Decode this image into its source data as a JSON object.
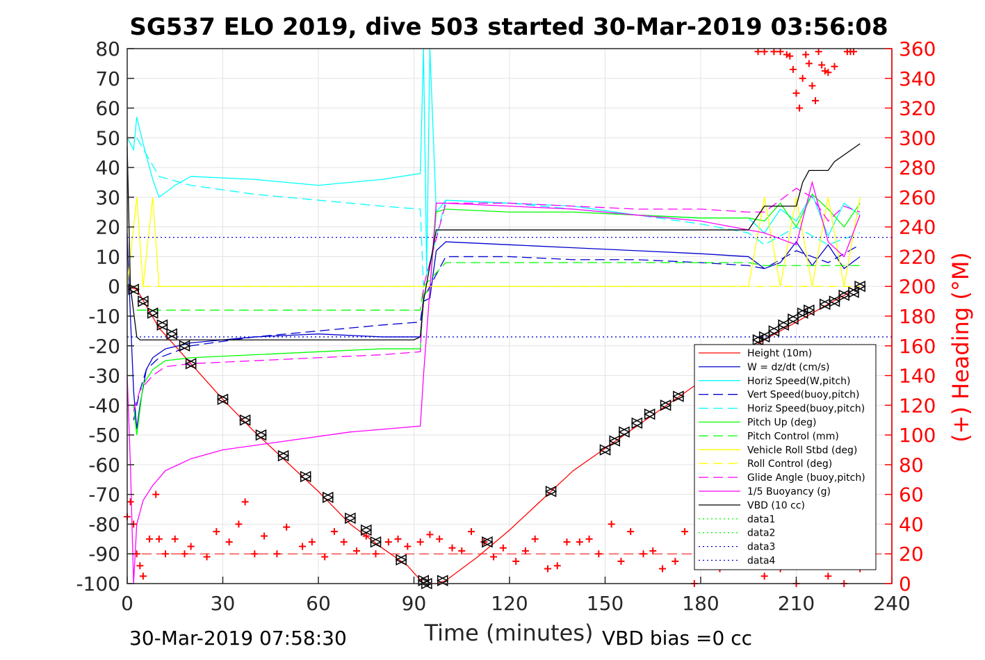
{
  "chart_data": {
    "type": "line",
    "title": "SG537 ELO 2019, dive 503 started 30-Mar-2019 03:56:08",
    "xlabel": "Time (minutes)",
    "ylabel_right": "(+) Heading (°M)",
    "footer_left": "30-Mar-2019 07:58:30",
    "footer_right": "VBD bias =0 cc",
    "xlim": [
      0,
      240
    ],
    "ylim": [
      -100,
      80
    ],
    "ylim_right": [
      0,
      360
    ],
    "x_ticks": [
      "0",
      "30",
      "60",
      "90",
      "120",
      "150",
      "180",
      "210",
      "240"
    ],
    "y_ticks": [
      "80",
      "70",
      "60",
      "50",
      "40",
      "30",
      "20",
      "10",
      "0",
      "-10",
      "-20",
      "-30",
      "-40",
      "-50",
      "-60",
      "-70",
      "-80",
      "-90",
      "-100"
    ],
    "y_ticks_right": [
      "360",
      "340",
      "320",
      "300",
      "280",
      "260",
      "240",
      "220",
      "200",
      "180",
      "160",
      "140",
      "120",
      "100",
      "80",
      "60",
      "40",
      "20",
      "0"
    ],
    "grid": true,
    "legend_position": "bottom-right",
    "series": [
      {
        "name": "Height (10m)",
        "color": "#ff0000",
        "style": "solid",
        "x": [
          0,
          3,
          10,
          20,
          30,
          40,
          50,
          60,
          70,
          80,
          88,
          93,
          97,
          100,
          110,
          120,
          140,
          160,
          180,
          200,
          215,
          230
        ],
        "y": [
          0,
          -1,
          -14,
          -26,
          -38,
          -49,
          -59,
          -69,
          -80,
          -88,
          -94,
          -100,
          -100,
          -99,
          -91,
          -82,
          -62,
          -47,
          -32,
          -18,
          -9,
          0
        ]
      },
      {
        "name": "W = dz/dt (cm/s)",
        "color": "#0000cd",
        "style": "solid",
        "x": [
          0,
          1,
          2,
          3,
          4,
          6,
          8,
          12,
          20,
          40,
          60,
          80,
          92,
          93,
          95,
          97,
          100,
          120,
          140,
          160,
          180,
          195,
          200,
          205,
          210,
          215,
          220,
          225,
          230
        ],
        "y": [
          18,
          -10,
          -35,
          -48,
          -40,
          -28,
          -24,
          -21,
          -19,
          -17,
          -16,
          -17,
          -17,
          -5,
          -4,
          12,
          15,
          14,
          13,
          12,
          11,
          10,
          6,
          8,
          15,
          7,
          14,
          6,
          10
        ]
      },
      {
        "name": "Horiz Speed(W,pitch)",
        "color": "#00ffff",
        "style": "solid",
        "x": [
          0,
          2,
          3,
          5,
          8,
          10,
          15,
          20,
          40,
          60,
          80,
          92,
          93,
          94,
          95,
          97,
          100,
          120,
          140,
          160,
          180,
          195,
          200,
          205,
          210,
          215,
          220,
          225,
          230
        ],
        "y": [
          50,
          46,
          57,
          48,
          36,
          30,
          34,
          37,
          36,
          34,
          36,
          38,
          80,
          5,
          80,
          25,
          29,
          28,
          27,
          24,
          23,
          23,
          18,
          26,
          22,
          31,
          17,
          28,
          24
        ]
      },
      {
        "name": "Vert Speed(buoy,pitch)",
        "color": "#0000cd",
        "style": "dash",
        "x": [
          2,
          4,
          6,
          10,
          20,
          40,
          60,
          80,
          92,
          93,
          100,
          120,
          140,
          160,
          180,
          195,
          200,
          210,
          220,
          230
        ],
        "y": [
          -45,
          -35,
          -28,
          -24,
          -20,
          -17,
          -15,
          -13,
          -12,
          -4,
          10,
          10,
          9,
          9,
          8,
          7,
          6,
          12,
          8,
          14
        ]
      },
      {
        "name": "Horiz Speed(buoy,pitch)",
        "color": "#00ffff",
        "style": "dash",
        "x": [
          3,
          10,
          20,
          40,
          60,
          80,
          92,
          93,
          100,
          120,
          140,
          160,
          180,
          195,
          200,
          210,
          220,
          230
        ],
        "y": [
          50,
          37,
          34,
          31,
          29,
          27,
          26,
          0,
          29,
          28,
          26,
          24,
          21,
          18,
          14,
          20,
          14,
          18
        ]
      },
      {
        "name": "Pitch Up (deg)",
        "color": "#00ff00",
        "style": "solid",
        "x": [
          2,
          3,
          5,
          8,
          12,
          20,
          40,
          60,
          80,
          92,
          93,
          95,
          97,
          100,
          120,
          140,
          160,
          180,
          195,
          200,
          205,
          210,
          215,
          220,
          225,
          230
        ],
        "y": [
          -40,
          -50,
          -33,
          -28,
          -25,
          -24,
          -23,
          -22,
          -21,
          -21,
          -3,
          -1,
          25,
          26,
          25,
          25,
          24,
          23,
          23,
          22,
          28,
          20,
          31,
          26,
          20,
          28
        ]
      },
      {
        "name": "Pitch Control (mm)",
        "color": "#00ff00",
        "style": "dash",
        "x": [
          3,
          92,
          93,
          100,
          195,
          200,
          230
        ],
        "y": [
          -8,
          -8,
          0,
          8,
          8,
          7,
          7
        ]
      },
      {
        "name": "Vehicle Roll Stbd (deg)",
        "color": "#ffff00",
        "style": "solid",
        "x": [
          0,
          3,
          5,
          8,
          10,
          20,
          30,
          40,
          50,
          60,
          70,
          80,
          92,
          93,
          100,
          120,
          140,
          160,
          180,
          195,
          200,
          205,
          210,
          215,
          220,
          225,
          230
        ],
        "y": [
          0,
          30,
          0,
          30,
          0,
          0,
          0,
          0,
          0,
          0,
          0,
          0,
          0,
          0,
          0,
          0,
          0,
          0,
          0,
          0,
          30,
          0,
          30,
          0,
          30,
          0,
          30
        ]
      },
      {
        "name": "Roll Control (deg)",
        "color": "#ffff00",
        "style": "dash",
        "x": [
          0,
          92,
          93,
          230
        ],
        "y": [
          0,
          0,
          0,
          0
        ]
      },
      {
        "name": "Glide Angle (buoy,pitch)",
        "color": "#ff00ff",
        "style": "dash",
        "x": [
          2,
          4,
          8,
          12,
          20,
          40,
          60,
          80,
          92,
          93,
          100,
          120,
          140,
          160,
          180,
          195,
          200,
          210,
          215,
          220,
          225,
          230
        ],
        "y": [
          -42,
          -35,
          -30,
          -27,
          -26,
          -25,
          -24,
          -23,
          -22,
          0,
          28,
          28,
          27,
          26,
          26,
          25,
          25,
          33,
          30,
          22,
          27,
          25
        ]
      },
      {
        "name": "1/5 Buoyancy (g)",
        "color": "#ff00ff",
        "style": "solid",
        "x": [
          0,
          1,
          2,
          3,
          5,
          8,
          12,
          20,
          30,
          50,
          70,
          92,
          93,
          97,
          100,
          120,
          140,
          160,
          180,
          200,
          210,
          215,
          220,
          225,
          230
        ],
        "y": [
          -30,
          -60,
          -100,
          -80,
          -72,
          -67,
          -62,
          -58,
          -55,
          -52,
          -49,
          -47,
          -30,
          28,
          28,
          27,
          26,
          24,
          22,
          18,
          14,
          35,
          15,
          10,
          24
        ]
      },
      {
        "name": "VBD (10 cc)",
        "color": "#000000",
        "style": "solid",
        "x": [
          0,
          1,
          3,
          4,
          90,
          92,
          93,
          97,
          100,
          195,
          200,
          210,
          212,
          214,
          220,
          222,
          226,
          230
        ],
        "y": [
          47,
          0,
          -17,
          -18,
          -18,
          -17,
          -5,
          19,
          19,
          19,
          27,
          27,
          35,
          39,
          39,
          42,
          45,
          48
        ]
      },
      {
        "name": "data1",
        "color": "#00ff00",
        "style": "dot",
        "x": [],
        "y": []
      },
      {
        "name": "data2",
        "color": "#00ff00",
        "style": "dot",
        "x": [],
        "y": []
      },
      {
        "name": "data3",
        "color": "#0000cd",
        "style": "dot",
        "x": [
          0,
          240
        ],
        "y": [
          16.5,
          16.5
        ]
      },
      {
        "name": "data4",
        "color": "#0000cd",
        "style": "dot",
        "x": [
          0,
          240
        ],
        "y": [
          -17,
          -17
        ]
      }
    ],
    "reference_lines": [
      {
        "color": "#ff0000",
        "style": "dash",
        "x": [
          0,
          240
        ],
        "y": [
          -90,
          -90
        ]
      }
    ],
    "heading_series": {
      "color": "#ff0000",
      "marker": "+",
      "axis": "right",
      "x": [
        0,
        1,
        2,
        3,
        4,
        5,
        7,
        9,
        10,
        12,
        15,
        18,
        20,
        25,
        28,
        32,
        35,
        37,
        40,
        43,
        47,
        50,
        55,
        58,
        62,
        65,
        68,
        72,
        75,
        78,
        82,
        85,
        88,
        92,
        95,
        98,
        102,
        105,
        108,
        112,
        115,
        118,
        122,
        125,
        128,
        132,
        135,
        138,
        142,
        145,
        148,
        152,
        155,
        158,
        162,
        165,
        168,
        172,
        175,
        178,
        182,
        186,
        190,
        195,
        200,
        205,
        210,
        215,
        220,
        225,
        230
      ],
      "y": [
        45,
        55,
        40,
        20,
        12,
        5,
        30,
        60,
        30,
        20,
        30,
        20,
        25,
        18,
        35,
        28,
        40,
        55,
        20,
        32,
        20,
        38,
        25,
        28,
        18,
        35,
        28,
        22,
        32,
        20,
        28,
        30,
        25,
        28,
        33,
        30,
        24,
        22,
        35,
        28,
        18,
        24,
        15,
        22,
        30,
        10,
        12,
        28,
        28,
        30,
        20,
        40,
        15,
        35,
        20,
        22,
        10,
        15,
        35,
        0,
        20,
        10,
        15,
        20,
        5,
        10,
        0,
        15,
        5,
        0,
        10
      ]
    },
    "heading_top_cluster": {
      "color": "#ff0000",
      "marker": "+",
      "axis": "right",
      "x": [
        198,
        200,
        203,
        205,
        207,
        208,
        209,
        210,
        211,
        212,
        213,
        214,
        215,
        216,
        217,
        218,
        219,
        220,
        222,
        226,
        227,
        228
      ],
      "y": [
        358,
        358,
        358,
        358,
        356,
        355,
        346,
        330,
        320,
        340,
        356,
        350,
        335,
        325,
        358,
        349,
        345,
        344,
        348,
        358,
        358,
        358
      ]
    },
    "triangle_markers": {
      "color": "#000000",
      "x": [
        2,
        5,
        8,
        11,
        14,
        18,
        20,
        30,
        37,
        42,
        49,
        56,
        63,
        70,
        75,
        78,
        86,
        93,
        94,
        99,
        113,
        133,
        150,
        153,
        156,
        160,
        164,
        169,
        173,
        198,
        200,
        203,
        206,
        209,
        212,
        214,
        219,
        222,
        225,
        228,
        230
      ],
      "y": [
        -1,
        -5,
        -9,
        -13,
        -16,
        -20,
        -26,
        -38,
        -45,
        -50,
        -57,
        -64,
        -71,
        -78,
        -82,
        -86,
        -92,
        -99,
        -100,
        -99,
        -86,
        -69,
        -55,
        -52,
        -49,
        -46,
        -43,
        -40,
        -37,
        -18,
        -17,
        -15,
        -13,
        -11,
        -9,
        -8,
        -6,
        -5,
        -3,
        -2,
        0
      ]
    }
  }
}
